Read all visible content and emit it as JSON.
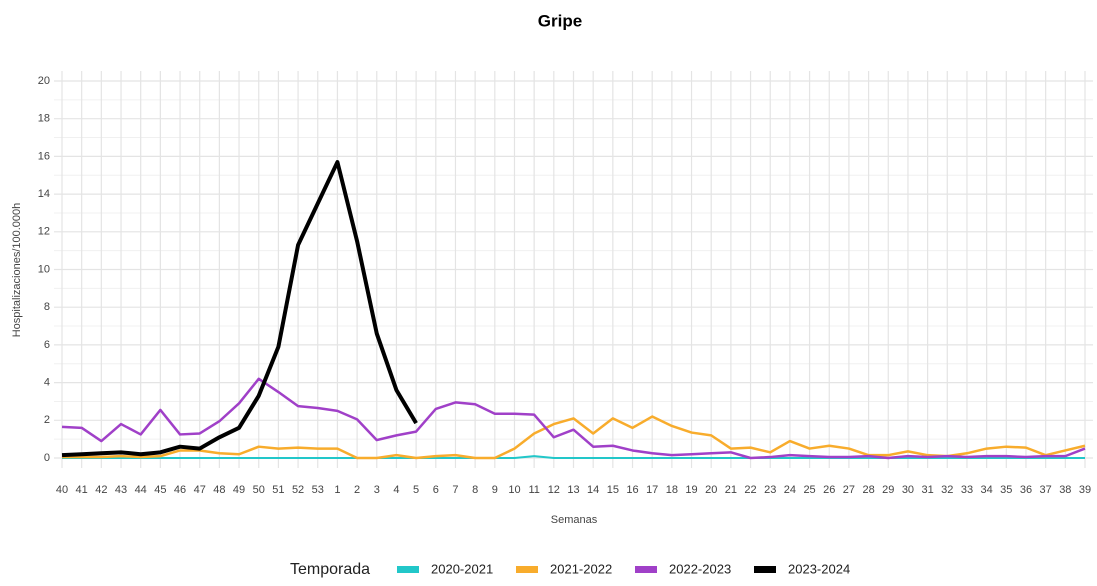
{
  "chart_data": {
    "type": "line",
    "title": "Gripe",
    "x_label": "Semanas",
    "y_label": "Hospitalizaciones/100.000h",
    "legend_title": "Temporada",
    "categories": [
      "40",
      "41",
      "42",
      "43",
      "44",
      "45",
      "46",
      "47",
      "48",
      "49",
      "50",
      "51",
      "52",
      "53",
      "1",
      "2",
      "3",
      "4",
      "5",
      "6",
      "7",
      "8",
      "9",
      "10",
      "11",
      "12",
      "13",
      "14",
      "15",
      "16",
      "17",
      "18",
      "19",
      "20",
      "21",
      "22",
      "23",
      "24",
      "25",
      "26",
      "27",
      "28",
      "29",
      "30",
      "31",
      "32",
      "33",
      "34",
      "35",
      "36",
      "37",
      "38",
      "39"
    ],
    "ylim": [
      0,
      20
    ],
    "yticks": [
      0,
      2,
      4,
      6,
      8,
      10,
      12,
      14,
      16,
      18,
      20
    ],
    "grid": true,
    "legend": "bottom",
    "series": [
      {
        "name": "2020-2021",
        "color": "#22c7c9",
        "width": 2,
        "values": [
          0,
          0,
          0,
          0,
          0,
          0,
          0,
          0,
          0,
          0,
          0,
          0,
          0,
          0,
          0,
          0,
          0,
          0,
          0,
          0,
          0,
          0,
          0,
          0,
          0.1,
          0,
          0,
          0,
          0,
          0,
          0,
          0,
          0,
          0,
          0,
          0,
          0,
          0,
          0,
          0,
          0,
          0,
          0,
          0,
          0,
          0,
          0,
          0,
          0,
          0,
          0,
          0,
          0
        ]
      },
      {
        "name": "2021-2022",
        "color": "#f8ac2c",
        "width": 2.5,
        "values": [
          0.05,
          0.05,
          0.05,
          0.1,
          0.05,
          0.1,
          0.4,
          0.4,
          0.25,
          0.2,
          0.6,
          0.5,
          0.55,
          0.5,
          0.5,
          0,
          0,
          0.15,
          0,
          0.1,
          0.15,
          0,
          0,
          0.5,
          1.3,
          1.8,
          2.1,
          1.3,
          2.1,
          1.6,
          2.2,
          1.7,
          1.35,
          1.2,
          0.5,
          0.55,
          0.3,
          0.9,
          0.5,
          0.65,
          0.5,
          0.15,
          0.15,
          0.35,
          0.15,
          0.1,
          0.25,
          0.5,
          0.6,
          0.55,
          0.15,
          0.4,
          0.65
        ]
      },
      {
        "name": "2022-2023",
        "color": "#a040c8",
        "width": 2.5,
        "values": [
          1.65,
          1.6,
          0.9,
          1.8,
          1.25,
          2.55,
          1.25,
          1.3,
          1.95,
          2.9,
          4.2,
          3.5,
          2.75,
          2.65,
          2.5,
          2.05,
          0.95,
          1.2,
          1.4,
          2.6,
          2.95,
          2.85,
          2.35,
          2.35,
          2.3,
          1.1,
          1.5,
          0.6,
          0.65,
          0.4,
          0.25,
          0.15,
          0.2,
          0.25,
          0.3,
          0,
          0.05,
          0.15,
          0.1,
          0.05,
          0.05,
          0.1,
          0,
          0.1,
          0.05,
          0.1,
          0.05,
          0.1,
          0.1,
          0.05,
          0.1,
          0.1,
          0.5
        ]
      },
      {
        "name": "2023-2024",
        "color": "#000000",
        "width": 4,
        "values": [
          0.15,
          0.2,
          0.25,
          0.3,
          0.2,
          0.3,
          0.6,
          0.5,
          1.1,
          1.6,
          3.3,
          5.9,
          11.3,
          13.5,
          15.7,
          11.5,
          6.6,
          3.6,
          1.85,
          null,
          null,
          null,
          null,
          null,
          null,
          null,
          null,
          null,
          null,
          null,
          null,
          null,
          null,
          null,
          null,
          null,
          null,
          null,
          null,
          null,
          null,
          null,
          null,
          null,
          null,
          null,
          null,
          null,
          null,
          null,
          null,
          null,
          null
        ]
      }
    ]
  }
}
